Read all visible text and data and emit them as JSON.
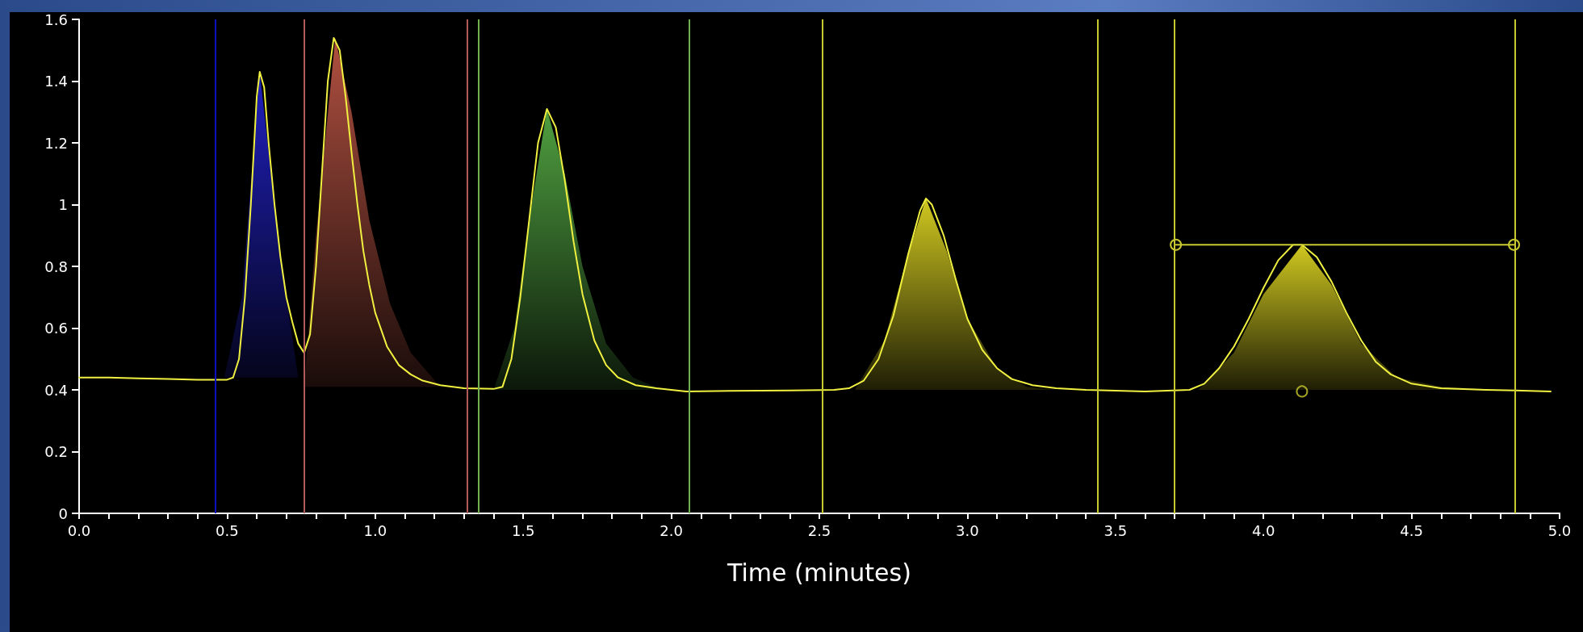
{
  "chart_data": {
    "type": "line",
    "xlabel": "Time (minutes)",
    "xlim": [
      0,
      5
    ],
    "ylim": [
      0,
      1.6
    ],
    "xticks": [
      {
        "value": 0,
        "label": "0.0"
      },
      {
        "value": 0.1,
        "label": null
      },
      {
        "value": 0.2,
        "label": null
      },
      {
        "value": 0.3,
        "label": null
      },
      {
        "value": 0.4,
        "label": null
      },
      0.5,
      {
        "value": 0.6,
        "label": null
      },
      {
        "value": 0.7,
        "label": null
      },
      {
        "value": 0.8,
        "label": null
      },
      {
        "value": 0.9,
        "label": null
      },
      {
        "value": 1,
        "label": "1.0"
      },
      {
        "value": 1.1,
        "label": null
      },
      {
        "value": 1.2,
        "label": null
      },
      {
        "value": 1.3,
        "label": null
      },
      {
        "value": 1.4,
        "label": null
      },
      1.5,
      {
        "value": 1.6,
        "label": null
      },
      {
        "value": 1.7,
        "label": null
      },
      {
        "value": 1.8,
        "label": null
      },
      {
        "value": 1.9,
        "label": null
      },
      {
        "value": 2,
        "label": "2.0"
      },
      {
        "value": 2.1,
        "label": null
      },
      {
        "value": 2.2,
        "label": null
      },
      {
        "value": 2.3,
        "label": null
      },
      {
        "value": 2.4,
        "label": null
      },
      2.5,
      {
        "value": 2.6,
        "label": null
      },
      {
        "value": 2.7,
        "label": null
      },
      {
        "value": 2.8,
        "label": null
      },
      {
        "value": 2.9,
        "label": null
      },
      {
        "value": 3,
        "label": "3.0"
      },
      {
        "value": 3.1,
        "label": null
      },
      {
        "value": 3.2,
        "label": null
      },
      {
        "value": 3.3,
        "label": null
      },
      {
        "value": 3.4,
        "label": null
      },
      3.5,
      {
        "value": 3.6,
        "label": null
      },
      {
        "value": 3.7,
        "label": null
      },
      {
        "value": 3.8,
        "label": null
      },
      {
        "value": 3.9,
        "label": null
      },
      {
        "value": 4,
        "label": "4.0"
      },
      {
        "value": 4.1,
        "label": null
      },
      {
        "value": 4.2,
        "label": null
      },
      {
        "value": 4.3,
        "label": null
      },
      {
        "value": 4.4,
        "label": null
      },
      4.5,
      {
        "value": 4.6,
        "label": null
      },
      {
        "value": 4.7,
        "label": null
      },
      {
        "value": 4.8,
        "label": null
      },
      {
        "value": 4.9,
        "label": null
      },
      {
        "value": 5,
        "label": "5.0"
      }
    ],
    "yticks": [
      0,
      0.2,
      0.4,
      0.6,
      0.8,
      1,
      1.2,
      1.4,
      1.6
    ],
    "grid": false,
    "line_style": "solid",
    "series": [
      {
        "type": "area",
        "color": "#2020c0",
        "x": [
          0.49,
          0.55,
          0.61,
          0.66,
          0.7,
          0.74
        ],
        "values": [
          0.44,
          0.7,
          1.43,
          1.0,
          0.7,
          0.44
        ]
      },
      {
        "type": "area",
        "color": "#b05040",
        "x": [
          0.76,
          0.8,
          0.865,
          0.92,
          0.98,
          1.05,
          1.12,
          1.22
        ],
        "values": [
          0.41,
          0.9,
          1.54,
          1.3,
          0.95,
          0.68,
          0.52,
          0.41
        ]
      },
      {
        "type": "area",
        "color": "#50a040",
        "x": [
          1.4,
          1.47,
          1.52,
          1.58,
          1.64,
          1.7,
          1.78,
          1.87,
          1.97
        ],
        "values": [
          0.4,
          0.6,
          0.95,
          1.31,
          1.1,
          0.8,
          0.55,
          0.44,
          0.4
        ]
      },
      {
        "type": "area",
        "color": "#d0c820",
        "x": [
          2.62,
          2.72,
          2.8,
          2.86,
          2.93,
          3.0,
          3.1,
          3.2,
          3.3
        ],
        "values": [
          0.4,
          0.56,
          0.84,
          1.02,
          0.85,
          0.63,
          0.47,
          0.41,
          0.4
        ]
      },
      {
        "type": "area",
        "color": "#d0c820",
        "x": [
          3.78,
          3.9,
          4.0,
          4.13,
          4.23,
          4.33,
          4.45,
          4.6,
          4.8
        ],
        "values": [
          0.4,
          0.52,
          0.71,
          0.87,
          0.74,
          0.55,
          0.44,
          0.41,
          0.4
        ]
      },
      {
        "color": "#f0f040",
        "marker": "none",
        "x": [
          0,
          0.1,
          0.2,
          0.3,
          0.4,
          0.5,
          0.52,
          0.54,
          0.56,
          0.58,
          0.6,
          0.61,
          0.625,
          0.64,
          0.66,
          0.68,
          0.7,
          0.72,
          0.74,
          0.76,
          0.78,
          0.8,
          0.82,
          0.84,
          0.86,
          0.88,
          0.9,
          0.92,
          0.94,
          0.96,
          0.98,
          1.0,
          1.04,
          1.08,
          1.12,
          1.16,
          1.22,
          1.3,
          1.4,
          1.43,
          1.46,
          1.49,
          1.52,
          1.55,
          1.58,
          1.61,
          1.64,
          1.67,
          1.7,
          1.74,
          1.78,
          1.82,
          1.88,
          1.95,
          2.05,
          2.2,
          2.4,
          2.55,
          2.6,
          2.65,
          2.7,
          2.75,
          2.8,
          2.84,
          2.86,
          2.88,
          2.92,
          2.96,
          3.0,
          3.05,
          3.1,
          3.15,
          3.22,
          3.3,
          3.4,
          3.6,
          3.75,
          3.8,
          3.85,
          3.9,
          3.95,
          4.0,
          4.05,
          4.1,
          4.13,
          4.18,
          4.23,
          4.28,
          4.33,
          4.38,
          4.43,
          4.5,
          4.6,
          4.75,
          4.85,
          4.97
        ],
        "values": [
          0.44,
          0.44,
          0.437,
          0.435,
          0.433,
          0.433,
          0.44,
          0.5,
          0.7,
          1.0,
          1.35,
          1.43,
          1.38,
          1.2,
          1.0,
          0.83,
          0.7,
          0.62,
          0.55,
          0.52,
          0.58,
          0.8,
          1.1,
          1.4,
          1.54,
          1.5,
          1.35,
          1.17,
          1.0,
          0.85,
          0.74,
          0.65,
          0.54,
          0.48,
          0.45,
          0.43,
          0.415,
          0.405,
          0.403,
          0.41,
          0.5,
          0.7,
          0.95,
          1.2,
          1.31,
          1.25,
          1.08,
          0.88,
          0.71,
          0.56,
          0.48,
          0.44,
          0.415,
          0.405,
          0.395,
          0.397,
          0.398,
          0.4,
          0.405,
          0.43,
          0.5,
          0.64,
          0.84,
          0.98,
          1.02,
          1.0,
          0.9,
          0.76,
          0.63,
          0.53,
          0.47,
          0.435,
          0.415,
          0.405,
          0.4,
          0.395,
          0.4,
          0.42,
          0.47,
          0.54,
          0.63,
          0.73,
          0.82,
          0.87,
          0.87,
          0.83,
          0.75,
          0.65,
          0.56,
          0.49,
          0.45,
          0.42,
          0.405,
          0.4,
          0.398,
          0.395
        ]
      },
      {
        "type": "line",
        "color": "#c8c830",
        "marker": "circle",
        "x": [
          3.704,
          4.846
        ],
        "values": [
          0.87,
          0.87
        ]
      },
      {
        "type": "scatter",
        "color": "#c8c830",
        "marker": "circle",
        "x": [
          4.13
        ],
        "values": [
          0.395
        ]
      }
    ],
    "ref_lines": [
      {
        "axis": "x",
        "value": 0.463,
        "color": "#1010c0"
      },
      {
        "axis": "x",
        "value": 0.758,
        "color": "#b05a5a"
      },
      {
        "axis": "x",
        "value": 1.313,
        "color": "#b05a5a"
      },
      {
        "axis": "x",
        "value": 1.348,
        "color": "#70b050"
      },
      {
        "axis": "x",
        "value": 2.061,
        "color": "#70b050"
      },
      {
        "axis": "x",
        "value": 2.514,
        "color": "#c8c830"
      },
      {
        "axis": "x",
        "value": 3.436,
        "color": "#c8c830"
      },
      {
        "axis": "x",
        "value": 3.704,
        "color": "#c8c830"
      },
      {
        "axis": "x",
        "value": 4.846,
        "color": "#c8c830"
      }
    ]
  }
}
